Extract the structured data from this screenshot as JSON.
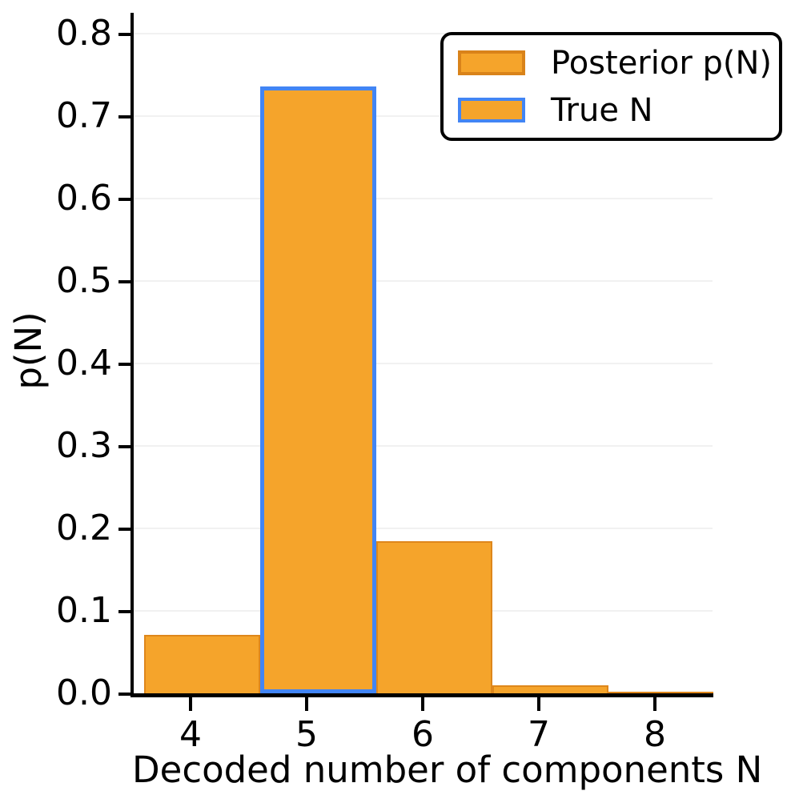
{
  "chart_data": {
    "type": "bar",
    "subtype": "histogram",
    "title": "",
    "xlabel": "Decoded number of components N",
    "ylabel": "p(N)",
    "categories": [
      4,
      5,
      6,
      7,
      8
    ],
    "values": [
      0.071,
      0.736,
      0.184,
      0.01,
      0.002
    ],
    "bar_width": 1.0,
    "bin_offset": 0.1,
    "true_n": 5,
    "xlim": [
      3.5,
      8.5
    ],
    "ylim": [
      0,
      0.823
    ],
    "xtick_values": [
      4,
      5,
      6,
      7,
      8
    ],
    "xtick_labels": [
      "4",
      "5",
      "6",
      "7",
      "8"
    ],
    "ytick_values": [
      0.0,
      0.1,
      0.2,
      0.3,
      0.4,
      0.5,
      0.6,
      0.7,
      0.8
    ],
    "ytick_labels": [
      "0.0",
      "0.1",
      "0.2",
      "0.3",
      "0.4",
      "0.5",
      "0.6",
      "0.7",
      "0.8"
    ],
    "grid": "horizontal",
    "legend": {
      "position": "upper-right",
      "entries": [
        {
          "label": "Posterior p(N)",
          "swatch_fill": "#F5A42B",
          "swatch_edge": "#D9831A"
        },
        {
          "label": "True N",
          "swatch_fill": "#F5A42B",
          "swatch_edge": "#4285F4"
        }
      ]
    },
    "colors": {
      "bar_fill": "#F5A42B",
      "bar_edge": "#DE871C",
      "true_bar_edge": "#4285F4",
      "grid": "#f1f1f1",
      "axis": "#000000",
      "text": "#000000"
    }
  }
}
